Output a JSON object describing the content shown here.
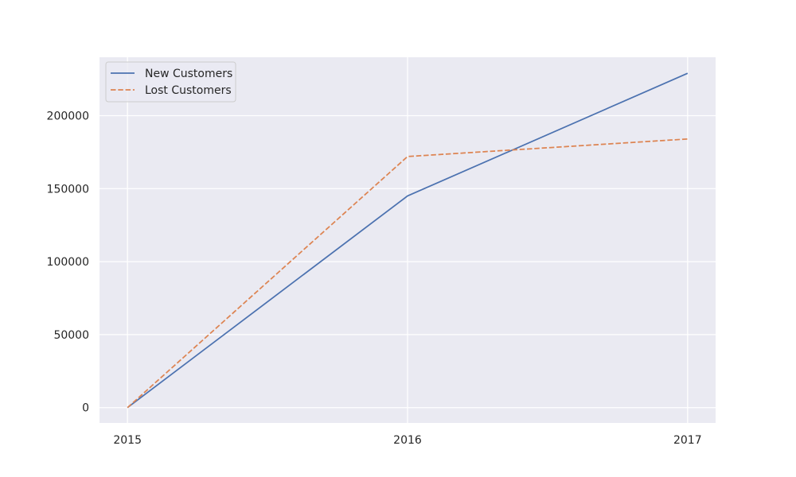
{
  "chart_data": {
    "type": "line",
    "title": "",
    "xlabel": "",
    "ylabel": "",
    "x": [
      "2015",
      "2016",
      "2017"
    ],
    "xlim": [
      2014.9,
      2017.1
    ],
    "ylim": [
      -10500,
      240000
    ],
    "y_ticks": [
      0,
      50000,
      100000,
      150000,
      200000
    ],
    "y_tick_labels": [
      "0",
      "50000",
      "100000",
      "150000",
      "200000"
    ],
    "grid": true,
    "legend_position": "upper-left",
    "series": [
      {
        "name": "New Customers",
        "values": [
          0,
          145000,
          229000
        ],
        "color": "#4c72b0",
        "style": "solid"
      },
      {
        "name": "Lost Customers",
        "values": [
          0,
          172000,
          184000
        ],
        "color": "#dd8452",
        "style": "dashed"
      }
    ],
    "background_color": "#eaeaf2",
    "grid_color": "#ffffff"
  }
}
